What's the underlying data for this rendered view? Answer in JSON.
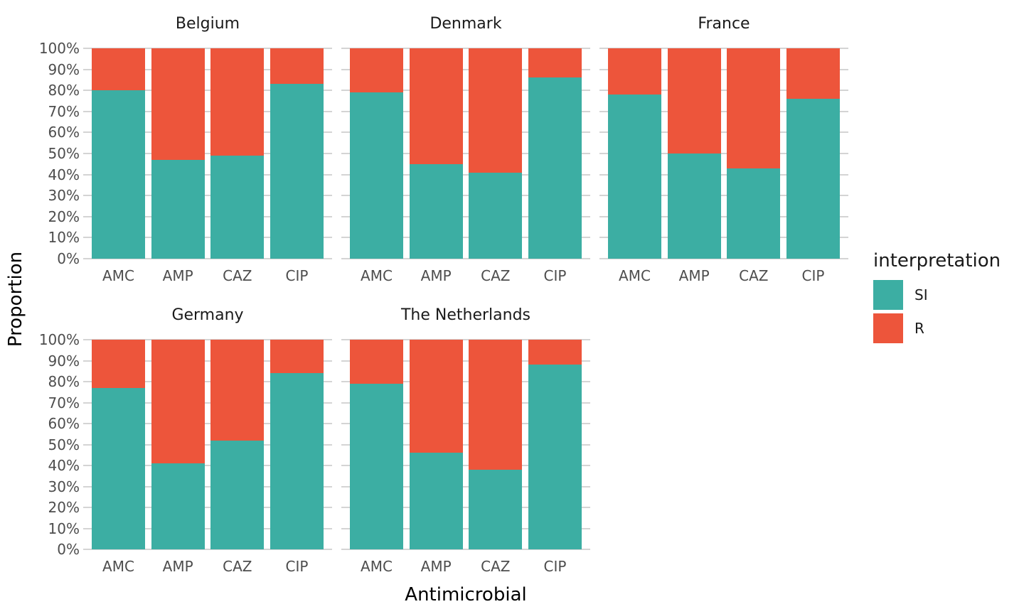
{
  "chart_data": {
    "type": "bar",
    "variant": "stacked-percent-faceted",
    "title": "",
    "xlabel": "Antimicrobial",
    "ylabel": "Proportion",
    "ylim": [
      0,
      100
    ],
    "y_tick_values": [
      0,
      10,
      20,
      30,
      40,
      50,
      60,
      70,
      80,
      90,
      100
    ],
    "y_tick_labels": [
      "0%",
      "10%",
      "20%",
      "30%",
      "40%",
      "50%",
      "60%",
      "70%",
      "80%",
      "90%",
      "100%"
    ],
    "grid": "horizontal",
    "categories": [
      "AMC",
      "AMP",
      "CAZ",
      "CIP"
    ],
    "legend": {
      "title": "interpretation",
      "position": "right",
      "entries": [
        "SI",
        "R"
      ]
    },
    "series_colors": {
      "SI": "#3CAEA3",
      "R": "#ED553B"
    },
    "facets": [
      {
        "name": "Belgium",
        "row": 0,
        "col": 0,
        "series": {
          "SI": [
            80,
            47,
            49,
            83
          ],
          "R": [
            20,
            53,
            51,
            17
          ]
        }
      },
      {
        "name": "Denmark",
        "row": 0,
        "col": 1,
        "series": {
          "SI": [
            79,
            45,
            41,
            86
          ],
          "R": [
            21,
            55,
            59,
            14
          ]
        }
      },
      {
        "name": "France",
        "row": 0,
        "col": 2,
        "series": {
          "SI": [
            78,
            50,
            43,
            76
          ],
          "R": [
            22,
            50,
            57,
            24
          ]
        }
      },
      {
        "name": "Germany",
        "row": 1,
        "col": 0,
        "series": {
          "SI": [
            77,
            41,
            52,
            84
          ],
          "R": [
            23,
            59,
            48,
            16
          ]
        }
      },
      {
        "name": "The Netherlands",
        "row": 1,
        "col": 1,
        "series": {
          "SI": [
            79,
            46,
            38,
            88
          ],
          "R": [
            21,
            54,
            62,
            12
          ]
        }
      }
    ]
  },
  "colors": {
    "background": "#ffffff",
    "gridline": "#d4d4d4",
    "tick_label": "#4d4d4d",
    "facet_title": "#1a1a1a",
    "axis_title": "#000000"
  }
}
